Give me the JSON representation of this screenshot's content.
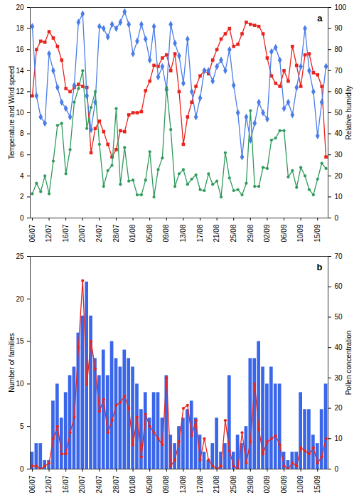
{
  "chart_data": [
    {
      "type": "line",
      "title": "a",
      "ylabel": "Temperature and Wind speed",
      "y2label": "Relative humidity",
      "categories": [
        "06/07",
        null,
        null,
        null,
        "12/07",
        null,
        null,
        null,
        "16/07",
        null,
        null,
        null,
        "20/07",
        null,
        null,
        null,
        "24/07",
        null,
        null,
        null,
        "28/07",
        null,
        null,
        null,
        "01/08",
        null,
        null,
        null,
        "05/08",
        null,
        null,
        null,
        "09/08",
        null,
        null,
        null,
        "13/08",
        null,
        null,
        null,
        "17/08",
        null,
        null,
        null,
        "21/08",
        null,
        null,
        null,
        "25/08",
        null,
        null,
        null,
        "29/08",
        null,
        null,
        null,
        "02/09",
        null,
        null,
        null,
        "06/09",
        null,
        null,
        null,
        "10/09",
        null,
        null,
        null,
        "15/09",
        null,
        null
      ],
      "ylim": [
        0,
        20
      ],
      "yticks": [
        0,
        2,
        4,
        6,
        8,
        10,
        12,
        14,
        16,
        18,
        20
      ],
      "y2lim": [
        0,
        100
      ],
      "y2ticks": [
        0,
        10,
        20,
        30,
        40,
        50,
        60,
        70,
        80,
        90,
        100
      ],
      "series": [
        {
          "color": "#e8231d",
          "marker": "square",
          "values": [
            11.6,
            16.0,
            16.8,
            16.7,
            17.7,
            17.1,
            16.3,
            15.0,
            12.3,
            12.0,
            12.4,
            12.7,
            12.5,
            12.4,
            6.2,
            8.5,
            9.2,
            8.2,
            7.0,
            5.8,
            6.5,
            8.3,
            8.2,
            9.8,
            10.0,
            10.0,
            10.1,
            12.1,
            13.0,
            14.5,
            14.4,
            15.2,
            15.5,
            14.0,
            15.6,
            12.0,
            7.0,
            9.6,
            11.0,
            12.5,
            13.5,
            14.0,
            13.7,
            15.0,
            16.0,
            17.0,
            17.5,
            18.0,
            16.3,
            16.5,
            17.5,
            18.6,
            18.4,
            18.3,
            18.2,
            17.5,
            15.2,
            13.5,
            12.8,
            12.5,
            14.0,
            13.0,
            16.3,
            14.5,
            12.5,
            15.5,
            15.6,
            13.8,
            13.6,
            12.5,
            5.8
          ]
        },
        {
          "color": "#4a7de8",
          "marker": "diamond",
          "axis": "y2",
          "values": [
            91,
            58,
            48,
            45,
            78,
            70,
            62,
            55,
            52,
            48,
            63,
            93,
            97,
            58,
            42,
            55,
            91,
            90,
            86,
            92,
            90,
            93,
            98,
            92,
            78,
            84,
            92,
            85,
            75,
            91,
            67,
            72,
            61,
            92,
            83,
            77,
            64,
            85,
            60,
            48,
            57,
            70,
            70,
            65,
            72,
            75,
            70,
            80,
            63,
            50,
            29,
            48,
            37,
            45,
            55,
            50,
            47,
            79,
            81,
            75,
            52,
            55,
            49,
            62,
            72,
            90,
            70,
            60,
            39,
            55,
            72
          ]
        },
        {
          "color": "#2f9a5c",
          "marker": "circle",
          "values": [
            2.3,
            3.3,
            2.5,
            4.0,
            2.3,
            5.4,
            8.8,
            9.0,
            4.2,
            6.5,
            11.0,
            12.3,
            14.0,
            8.5,
            10.5,
            12.0,
            7.0,
            3.0,
            4.5,
            5.0,
            10.4,
            3.2,
            6.7,
            3.5,
            3.6,
            2.2,
            2.2,
            3.6,
            6.3,
            2.0,
            4.6,
            5.7,
            12.4,
            8.4,
            3.0,
            4.2,
            4.6,
            3.2,
            3.7,
            4.1,
            2.7,
            2.6,
            4.2,
            3.2,
            3.5,
            2.0,
            6.2,
            3.8,
            2.6,
            2.7,
            2.2,
            3.3,
            10.2,
            3.0,
            3.0,
            4.8,
            4.7,
            7.4,
            7.6,
            8.3,
            8.3,
            3.9,
            4.5,
            2.9,
            4.8,
            4.0,
            2.7,
            2.2,
            3.7,
            5.2,
            4.7
          ]
        }
      ]
    },
    {
      "type": "bar",
      "title": "b",
      "ylabel": "Number of families",
      "y2label": "Pollen concentration",
      "categories": [
        "06/07",
        null,
        null,
        null,
        "12/07",
        null,
        null,
        null,
        "16/07",
        null,
        null,
        null,
        "20/07",
        null,
        null,
        null,
        "24/07",
        null,
        null,
        null,
        "28/07",
        null,
        null,
        null,
        "01/08",
        null,
        null,
        null,
        "05/08",
        null,
        null,
        null,
        "09/08",
        null,
        null,
        null,
        "13/08",
        null,
        null,
        null,
        "17/08",
        null,
        null,
        null,
        "21/08",
        null,
        null,
        null,
        "25/08",
        null,
        null,
        null,
        "29/08",
        null,
        null,
        null,
        "02/09",
        null,
        null,
        null,
        "06/09",
        null,
        null,
        null,
        "10/09",
        null,
        null,
        null,
        "15/09",
        null,
        null
      ],
      "ylim": [
        0,
        25
      ],
      "yticks": [
        0,
        5,
        10,
        15,
        20,
        25
      ],
      "y2lim": [
        0,
        70
      ],
      "y2ticks": [
        0,
        10,
        20,
        30,
        40,
        50,
        60,
        70
      ],
      "series": [
        {
          "type": "bar",
          "color": "#3a66ea",
          "values": [
            2,
            3,
            3,
            1,
            1,
            8,
            10,
            6,
            9,
            11,
            12,
            16,
            18,
            22,
            18,
            13,
            11,
            14,
            11,
            15,
            13,
            12,
            14,
            13,
            12,
            10,
            7,
            9,
            6,
            9,
            9,
            6,
            11,
            4,
            3,
            5,
            6,
            7,
            8,
            6,
            4,
            2,
            1,
            3,
            6,
            2,
            3,
            11,
            2,
            4,
            3,
            5,
            13,
            13,
            15,
            12,
            10,
            12,
            10,
            10,
            2,
            1,
            2,
            2,
            9,
            7,
            7,
            4,
            3,
            7,
            10
          ]
        },
        {
          "type": "line",
          "color": "#e8231d",
          "marker": "circle",
          "axis": "y2",
          "values": [
            1,
            1,
            0,
            1,
            2,
            10,
            14,
            5,
            5,
            12,
            17,
            40,
            62,
            28,
            42,
            33,
            19,
            23,
            12,
            16,
            21,
            22,
            24,
            20,
            8,
            17,
            4,
            18,
            14,
            12,
            10,
            8,
            30,
            1,
            3,
            9,
            20,
            21,
            11,
            16,
            3,
            10,
            3,
            1,
            0,
            1,
            16,
            6,
            1,
            0,
            12,
            2,
            9,
            28,
            13,
            5,
            9,
            10,
            11,
            8,
            1,
            0,
            2,
            1,
            7,
            6,
            5,
            7,
            2,
            4,
            10
          ]
        }
      ]
    }
  ]
}
